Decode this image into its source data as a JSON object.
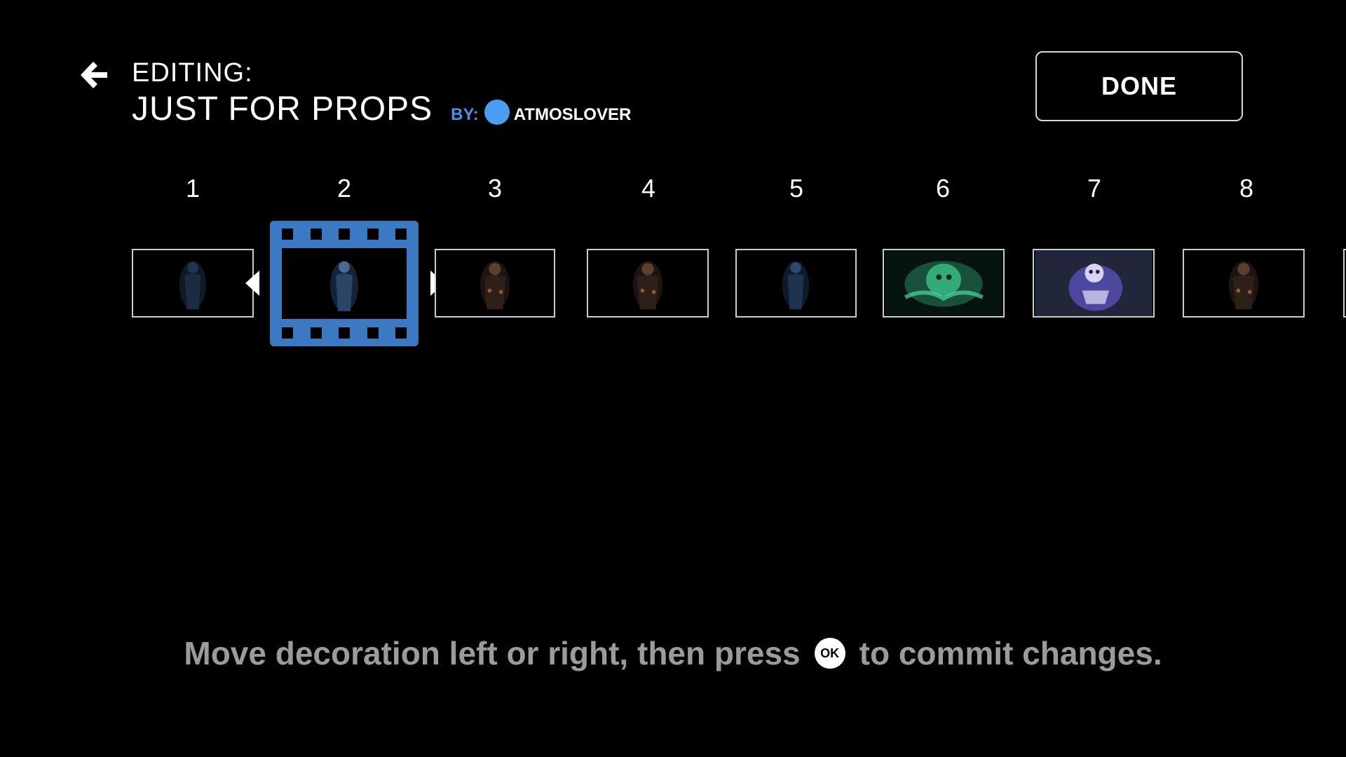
{
  "header": {
    "back_icon": "arrow-left-icon",
    "editing_label": "EDITING:",
    "playlist_title": "JUST FOR PROPS",
    "by_label": "BY:",
    "author_name": "ATMOSLOVER",
    "done_label": "DONE"
  },
  "timeline": {
    "selected_slot": 2,
    "slots": [
      {
        "number": "1",
        "theme": "dark-figure"
      },
      {
        "number": "2",
        "theme": "dark-figure"
      },
      {
        "number": "3",
        "theme": "witch"
      },
      {
        "number": "4",
        "theme": "witch"
      },
      {
        "number": "5",
        "theme": "dark-figure"
      },
      {
        "number": "6",
        "theme": "green-ghost"
      },
      {
        "number": "7",
        "theme": "purple-ghost"
      },
      {
        "number": "8",
        "theme": "witch"
      }
    ]
  },
  "instructions": {
    "before": "Move decoration left or right, then press",
    "ok_label": "OK",
    "after": "to commit changes."
  },
  "colors": {
    "accent": "#3b79c2",
    "author_avatar": "#4a9df0",
    "by_label": "#4a90e2",
    "instruction_text": "#9b9b9b"
  }
}
